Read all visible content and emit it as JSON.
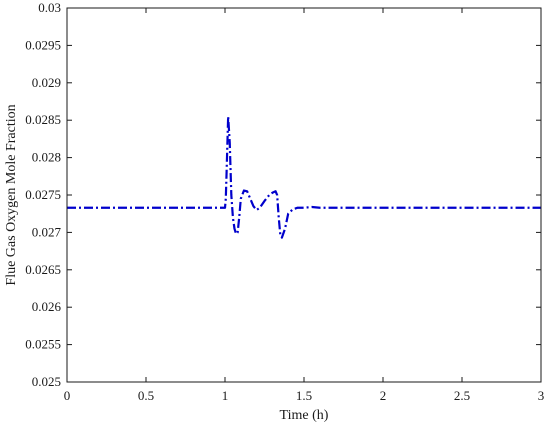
{
  "chart_data": {
    "type": "line",
    "title": "",
    "xlabel": "Time (h)",
    "ylabel": "Flue Gas Oxygen Mole Fraction",
    "xlim": [
      0,
      3
    ],
    "ylim": [
      0.025,
      0.03
    ],
    "x_ticks": [
      "0",
      "0.5",
      "1",
      "1.5",
      "2",
      "2.5",
      "3"
    ],
    "y_ticks": [
      "0.025",
      "0.0255",
      "0.026",
      "0.0265",
      "0.027",
      "0.0275",
      "0.028",
      "0.0285",
      "0.029",
      "0.0295",
      "0.03"
    ],
    "grid": false,
    "legend": "none",
    "series": [
      {
        "color": "#0000cc",
        "style": "dash-dot",
        "x": [
          0,
          1.0,
          1.005,
          1.01,
          1.02,
          1.03,
          1.04,
          1.05,
          1.06,
          1.07,
          1.08,
          1.09,
          1.1,
          1.12,
          1.14,
          1.16,
          1.18,
          1.2,
          1.22,
          1.25,
          1.28,
          1.3,
          1.32,
          1.33,
          1.34,
          1.35,
          1.36,
          1.38,
          1.4,
          1.43,
          1.46,
          1.5,
          1.55,
          1.6,
          1.7,
          3.0
        ],
        "y": [
          0.02733,
          0.02733,
          0.02745,
          0.0278,
          0.02855,
          0.0282,
          0.0275,
          0.0272,
          0.02705,
          0.02698,
          0.027,
          0.0272,
          0.02745,
          0.02756,
          0.02755,
          0.02745,
          0.02735,
          0.0273,
          0.02733,
          0.02742,
          0.0275,
          0.02753,
          0.02755,
          0.0275,
          0.0272,
          0.02697,
          0.02693,
          0.02705,
          0.02725,
          0.02731,
          0.02733,
          0.02733,
          0.02734,
          0.02733,
          0.02733,
          0.02733
        ]
      }
    ]
  }
}
